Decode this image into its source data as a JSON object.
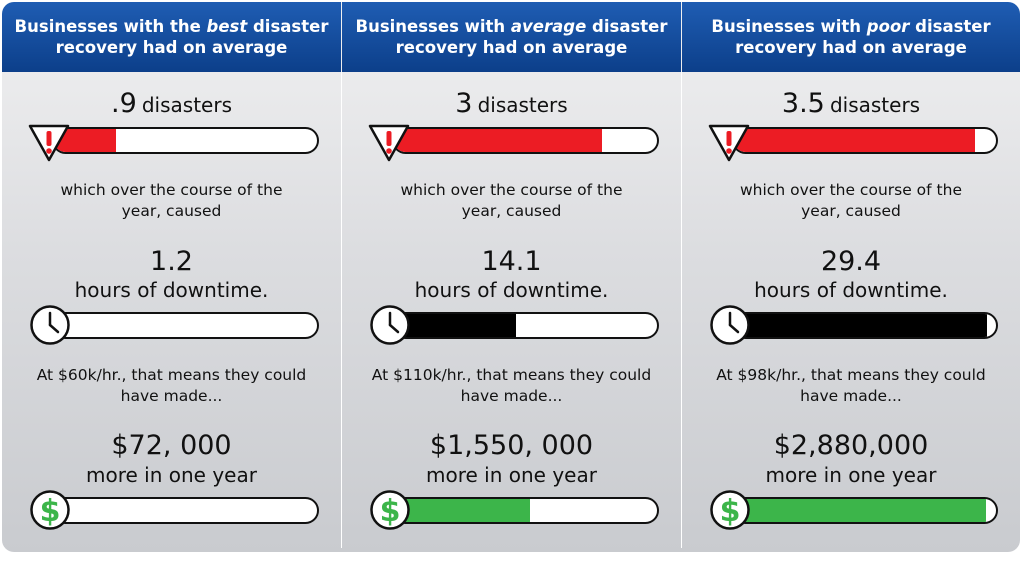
{
  "columns": [
    {
      "header": {
        "pre": "Businesses with the ",
        "em": "best",
        "post": " disaster recovery had on average"
      },
      "disasters": ".9",
      "disasters_label": "disasters",
      "caused_text_1": "which over the course of the",
      "caused_text_2": "year, caused",
      "hours": "1.2",
      "hours_label": "hours of downtime.",
      "rate_text_1": "At $60k/hr., that means they could",
      "rate_text_2": "have made...",
      "amount": "$72, 000",
      "amount_label": "more in one year"
    },
    {
      "header": {
        "pre": "Businesses with ",
        "em": "average",
        "post": " disaster recovery had on average"
      },
      "disasters": "3",
      "disasters_label": "disasters",
      "caused_text_1": "which over the course of the",
      "caused_text_2": "year, caused",
      "hours": "14.1",
      "hours_label": "hours of downtime.",
      "rate_text_1": "At $110k/hr., that means they could",
      "rate_text_2": "have made...",
      "amount": "$1,550, 000",
      "amount_label": "more in one year"
    },
    {
      "header": {
        "pre": "Businesses with ",
        "em": "poor",
        "post": " disaster recovery had on average"
      },
      "disasters": "3.5",
      "disasters_label": "disasters",
      "caused_text_1": "which over the course of the",
      "caused_text_2": "year, caused",
      "hours": "29.4",
      "hours_label": "hours of downtime.",
      "rate_text_1": "At $98k/hr., that means they could",
      "rate_text_2": "have made...",
      "amount": "$2,880,000",
      "amount_label": "more in one year"
    }
  ],
  "chart_data": [
    {
      "type": "bar",
      "name": "disasters",
      "categories": [
        "best",
        "average",
        "poor"
      ],
      "values": [
        0.9,
        3,
        3.5
      ],
      "ylim": [
        0,
        3.8
      ],
      "color": "#ec1c24"
    },
    {
      "type": "bar",
      "name": "hours of downtime",
      "categories": [
        "best",
        "average",
        "poor"
      ],
      "values": [
        1.2,
        14.1,
        29.4
      ],
      "ylim": [
        0,
        30.5
      ],
      "color": "#000000"
    },
    {
      "type": "bar",
      "name": "more in one year",
      "categories": [
        "best",
        "average",
        "poor"
      ],
      "values": [
        72000,
        1550000,
        2880000
      ],
      "ylim": [
        0,
        3000000
      ],
      "color": "#3cb54a"
    }
  ],
  "icons": {
    "warning": "warning-triangle-icon",
    "clock": "clock-icon",
    "dollar": "dollar-icon"
  },
  "colors": {
    "header": "#0c3f8a",
    "red": "#ec1c24",
    "black": "#000000",
    "green": "#3cb54a"
  }
}
